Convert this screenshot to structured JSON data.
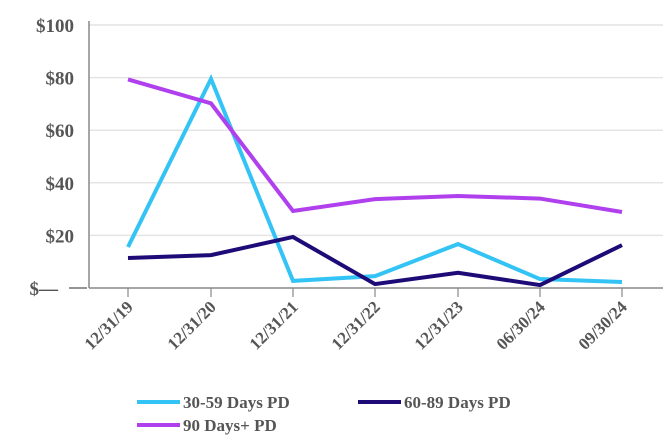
{
  "chart_data": {
    "type": "line",
    "categories": [
      "12/31/19",
      "12/31/20",
      "12/31/21",
      "12/31/22",
      "12/31/23",
      "06/30/24",
      "09/30/24"
    ],
    "ylim": [
      0,
      100
    ],
    "yticks": [
      0,
      20,
      40,
      60,
      80,
      100
    ],
    "ytick_labels": [
      "$—",
      "$20",
      "$40",
      "$60",
      "$80",
      "$100"
    ],
    "grid": true,
    "legend_placement": "bottom",
    "series": [
      {
        "name": "30-59 Days PD",
        "color": "#33c3f5",
        "values": [
          15.6,
          79.5,
          2.7,
          4.5,
          16.7,
          3.4,
          2.3
        ]
      },
      {
        "name": "60-89 Days PD",
        "color": "#1e0b78",
        "values": [
          11.4,
          12.5,
          19.4,
          1.5,
          5.8,
          1.1,
          16.3
        ]
      },
      {
        "name": "90 Days+ PD",
        "color": "#b040ee",
        "values": [
          79.3,
          70.2,
          29.3,
          33.8,
          35.0,
          34.0,
          28.9
        ]
      }
    ]
  }
}
